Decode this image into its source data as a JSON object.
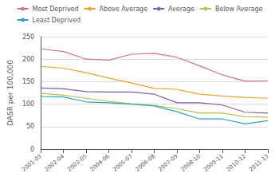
{
  "chart_data": {
    "type": "line",
    "categories": [
      "2001-03",
      "2002-04",
      "2003-05",
      "2004-06",
      "2005-07",
      "2006-08",
      "2007-09",
      "2008-10",
      "2009-11",
      "2010-12",
      "2011-13"
    ],
    "series": [
      {
        "name": "Most Deprived",
        "color": "#d4728a",
        "values": [
          223,
          217,
          200,
          198,
          211,
          213,
          204,
          185,
          165,
          151,
          152
        ]
      },
      {
        "name": "Above Average",
        "color": "#f0a030",
        "values": [
          184,
          180,
          170,
          158,
          147,
          135,
          133,
          122,
          118,
          115,
          113
        ]
      },
      {
        "name": "Average",
        "color": "#8060a0",
        "values": [
          136,
          134,
          128,
          127,
          127,
          122,
          103,
          103,
          98,
          82,
          80
        ]
      },
      {
        "name": "Below Average",
        "color": "#b8c050",
        "values": [
          124,
          120,
          113,
          106,
          101,
          97,
          90,
          80,
          80,
          72,
          71
        ]
      },
      {
        "name": "Least Deprived",
        "color": "#30a0c0",
        "values": [
          117,
          116,
          105,
          103,
          100,
          96,
          83,
          67,
          67,
          56,
          63
        ]
      }
    ],
    "ylabel": "DASR per 100,000",
    "ylim": [
      0,
      250
    ],
    "yticks": [
      0,
      50,
      100,
      150,
      200,
      250
    ],
    "grid": true,
    "legend": "top"
  }
}
